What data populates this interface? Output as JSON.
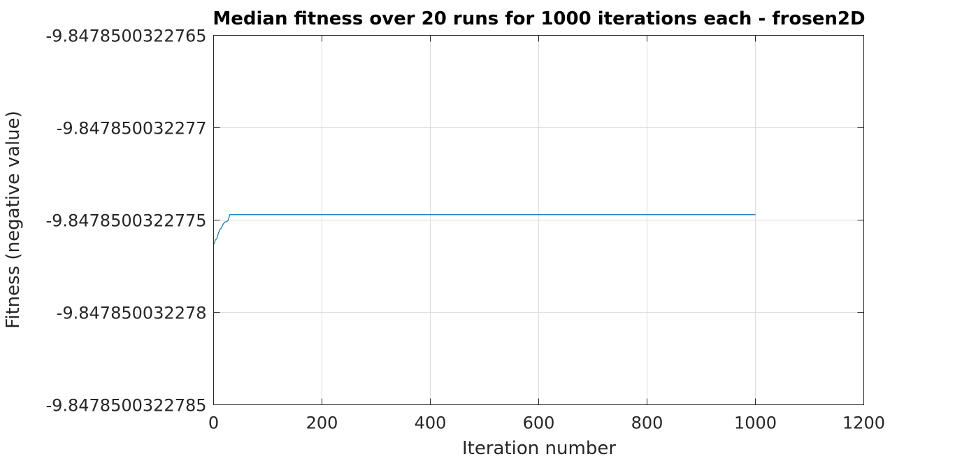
{
  "chart_data": {
    "type": "line",
    "title": "Median fitness over 20 runs for 1000 iterations each - frosen2D",
    "xlabel": "Iteration number",
    "ylabel": "Fitness (negative value)",
    "xlim": [
      0,
      1200
    ],
    "ylim": [
      -9.8478500322785,
      -9.8478500322765
    ],
    "grid": true,
    "x_ticks": [
      0,
      200,
      400,
      600,
      800,
      1000,
      1200
    ],
    "x_tick_labels": [
      "0",
      "200",
      "400",
      "600",
      "800",
      "1000",
      "1200"
    ],
    "y_ticks": [
      -9.8478500322765,
      -9.847850032277,
      -9.8478500322775,
      -9.847850032278,
      -9.8478500322785
    ],
    "y_tick_labels": [
      "-9.8478500322765",
      "-9.847850032277",
      "-9.8478500322775",
      "-9.847850032278",
      "-9.8478500322785"
    ],
    "series": [
      {
        "color": "#0072bd",
        "x": [
          1,
          3,
          6,
          9,
          12,
          15,
          18,
          21,
          24,
          27,
          30,
          1000
        ],
        "y": [
          -9.84785003227763,
          -9.84785003227761,
          -9.8478500322776,
          -9.84785003227757,
          -9.84785003227755,
          -9.84785003227754,
          -9.84785003227752,
          -9.84785003227751,
          -9.84785003227751,
          -9.8478500322775,
          -9.84785003227747,
          -9.84785003227747
        ]
      }
    ]
  }
}
